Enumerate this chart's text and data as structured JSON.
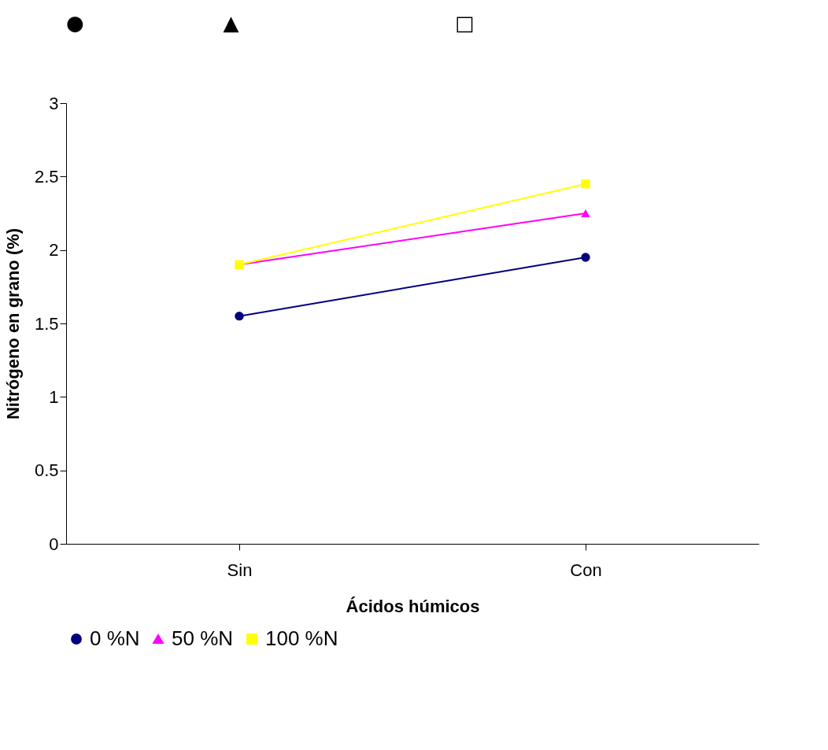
{
  "chart_data": {
    "type": "line",
    "xlabel": "Ácidos húmicos",
    "ylabel": "Nitrógeno en grano (%)",
    "annotations": [
      "●",
      "▲",
      "□"
    ],
    "categories": [
      "Sin",
      "Con"
    ],
    "series": [
      {
        "name": "0 %N",
        "color": "#000080",
        "marker": "circle",
        "values": [
          1.55,
          1.95
        ]
      },
      {
        "name": "50 %N",
        "color": "#ff00ff",
        "marker": "triangle",
        "values": [
          1.9,
          2.25
        ]
      },
      {
        "name": "100 %N",
        "color": "#ffff00",
        "marker": "square",
        "values": [
          1.9,
          2.45
        ]
      }
    ],
    "ylim": [
      0,
      3
    ],
    "yticks": [
      0,
      0.5,
      1,
      1.5,
      2,
      2.5,
      3
    ],
    "grid": false,
    "legend": "bottom",
    "line_style": "solid"
  }
}
